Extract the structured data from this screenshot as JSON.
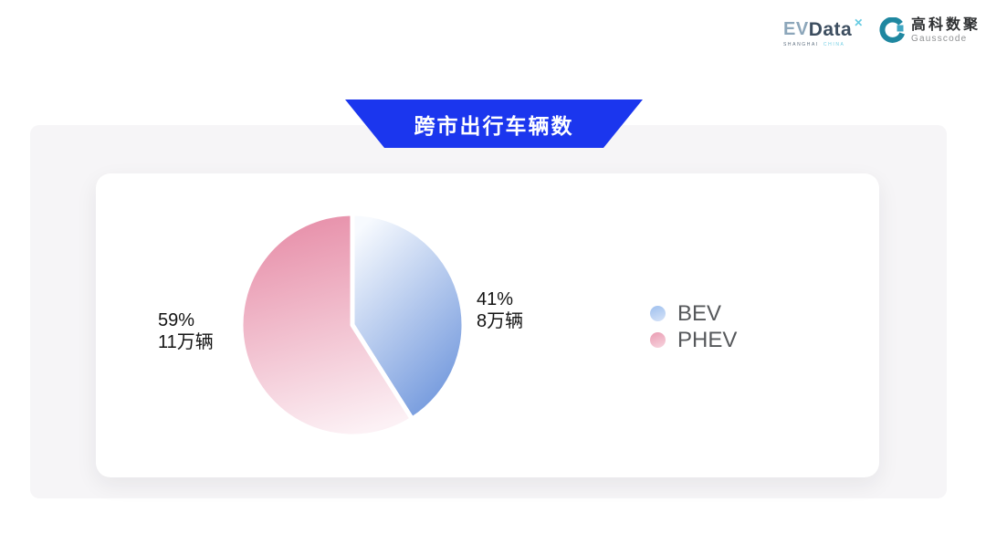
{
  "brand": {
    "evdata": {
      "name_primary": "EV",
      "name_secondary": "Data",
      "mark": "✕",
      "tagline_left": "SHANGHAI",
      "tagline_right": "CHINA"
    },
    "gausscode": {
      "name_cn": "高科数聚",
      "name_en": "Gausscode",
      "icon_color_dark": "#1f87a0",
      "icon_color_light": "#3fa6c2"
    }
  },
  "banner": {
    "title": "跨市出行车辆数",
    "color": "#1b36ee"
  },
  "chart_data": {
    "type": "pie",
    "title": "跨市出行车辆数",
    "start_angle_deg": 0,
    "direction": "clockwise",
    "legend_position": "right",
    "slices": [
      {
        "label": "BEV",
        "percent": 41,
        "value": 8,
        "value_label": "8万辆",
        "grad_start": "#f7fafe",
        "grad_end": "#6f96dc",
        "grad_dir": {
          "x1": "0.2",
          "y1": "0",
          "x2": "0.75",
          "y2": "1"
        },
        "legend_dot_start": "#9fc0ee",
        "legend_dot_end": "#d6e3f8"
      },
      {
        "label": "PHEV",
        "percent": 59,
        "value": 11,
        "value_label": "11万辆",
        "grad_start": "#e78fa9",
        "grad_end": "#fcf1f5",
        "grad_dir": {
          "x1": "0.4",
          "y1": "0",
          "x2": "0.62",
          "y2": "1"
        },
        "legend_dot_start": "#ea9cb2",
        "legend_dot_end": "#f7d5df"
      }
    ]
  },
  "labels": {
    "left": {
      "percent": "59%",
      "value": "11万辆"
    },
    "right": {
      "percent": "41%",
      "value": "8万辆"
    }
  }
}
